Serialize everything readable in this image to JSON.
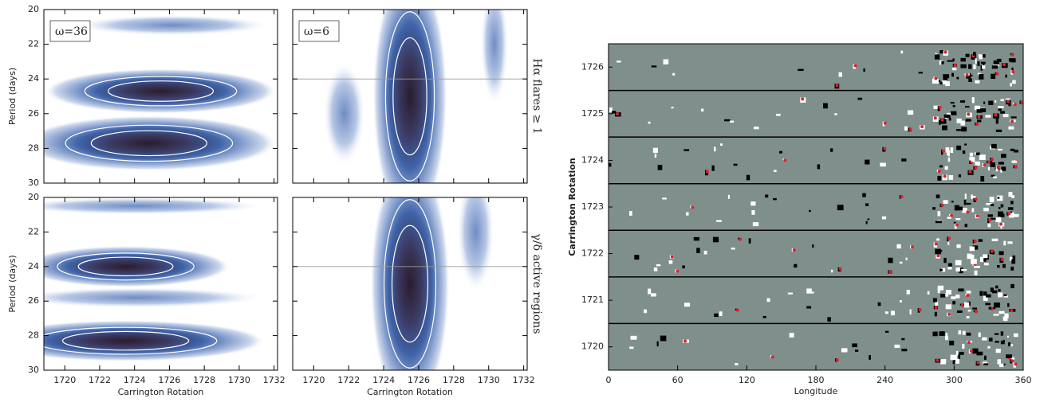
{
  "chart_data": [
    {
      "type": "contour",
      "annotation": "ω=36",
      "y_label": "Period (days)",
      "xlim": [
        1718.8,
        1732.2
      ],
      "ylim": [
        30,
        20
      ],
      "xticks": [
        1720,
        1722,
        1724,
        1726,
        1728,
        1730,
        1732
      ],
      "yticks": [
        20,
        22,
        24,
        26,
        28,
        30
      ]
    },
    {
      "type": "contour",
      "annotation": "ω=6",
      "side_label": "Hα flares ≥ 1",
      "xlim": [
        1718.8,
        1732.2
      ],
      "ylim": [
        30,
        20
      ],
      "xticks": [
        1720,
        1722,
        1724,
        1726,
        1728,
        1730,
        1732
      ],
      "yticks": [
        20,
        22,
        24,
        26,
        28,
        30
      ]
    },
    {
      "type": "contour",
      "y_label": "Period (days)",
      "x_label": "Carrington Rotation",
      "xlim": [
        1718.8,
        1732.2
      ],
      "ylim": [
        30,
        20
      ],
      "xticks": [
        1720,
        1722,
        1724,
        1726,
        1728,
        1730,
        1732
      ],
      "yticks": [
        20,
        22,
        24,
        26,
        28,
        30
      ]
    },
    {
      "type": "contour",
      "x_label": "Carrington Rotation",
      "side_label": "γ/δ active regions",
      "xlim": [
        1718.8,
        1732.2
      ],
      "ylim": [
        30,
        20
      ],
      "xticks": [
        1720,
        1722,
        1724,
        1726,
        1728,
        1730,
        1732
      ],
      "yticks": [
        20,
        22,
        24,
        26,
        28,
        30
      ]
    },
    {
      "type": "magnetogram",
      "x_label": "Longitude",
      "y_label": "Carrington Rotation",
      "xlim": [
        0,
        360
      ],
      "xticks": [
        0,
        60,
        120,
        180,
        240,
        300,
        360
      ],
      "categories": [
        "1726",
        "1725",
        "1724",
        "1723",
        "1722",
        "1721",
        "1720"
      ]
    }
  ]
}
